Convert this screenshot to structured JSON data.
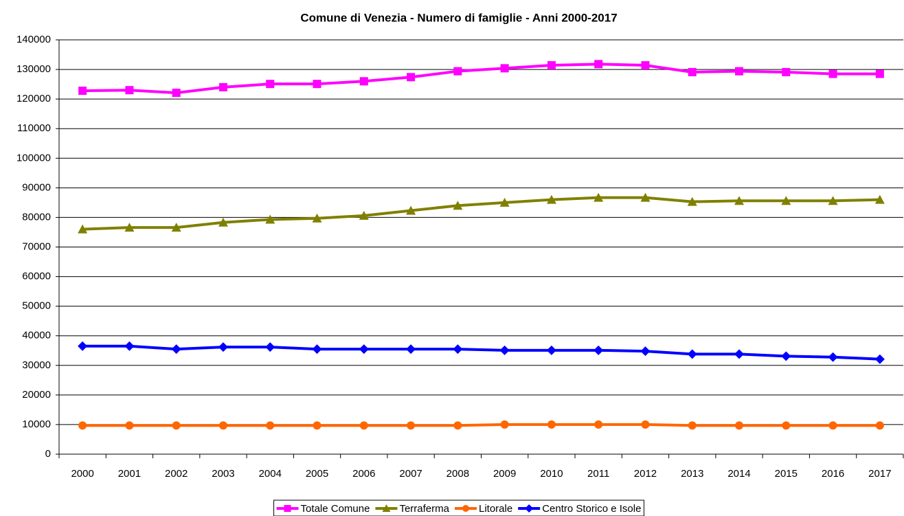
{
  "chart_data": {
    "type": "line",
    "title": "Comune di Venezia - Numero di famiglie - Anni 2000-2017",
    "categories": [
      "2000",
      "2001",
      "2002",
      "2003",
      "2004",
      "2005",
      "2006",
      "2007",
      "2008",
      "2009",
      "2010",
      "2011",
      "2012",
      "2013",
      "2014",
      "2015",
      "2016",
      "2017"
    ],
    "series": [
      {
        "name": "Totale Comune",
        "color": "#ff00ff",
        "marker": "square",
        "values": [
          122800,
          123000,
          122100,
          124000,
          125100,
          125100,
          126000,
          127400,
          129400,
          130400,
          131400,
          131800,
          131400,
          129100,
          129400,
          129100,
          128500,
          128500
        ]
      },
      {
        "name": "Terraferma",
        "color": "#808000",
        "marker": "triangle",
        "values": [
          76000,
          76600,
          76600,
          78300,
          79300,
          79700,
          80600,
          82300,
          84000,
          85000,
          86000,
          86700,
          86700,
          85300,
          85600,
          85600,
          85600,
          86000
        ]
      },
      {
        "name": "Litorale",
        "color": "#ff6600",
        "marker": "circle",
        "values": [
          9700,
          9700,
          9700,
          9700,
          9700,
          9700,
          9700,
          9700,
          9700,
          10000,
          10000,
          10000,
          10000,
          9700,
          9700,
          9700,
          9700,
          9700
        ]
      },
      {
        "name": "Centro Storico e Isole",
        "color": "#0000ff",
        "marker": "diamond",
        "values": [
          36500,
          36500,
          35500,
          36200,
          36200,
          35500,
          35500,
          35500,
          35500,
          35100,
          35100,
          35100,
          34800,
          33800,
          33800,
          33100,
          32800,
          32100
        ]
      }
    ],
    "ylim": [
      0,
      140000
    ],
    "yticks": [
      0,
      10000,
      20000,
      30000,
      40000,
      50000,
      60000,
      70000,
      80000,
      90000,
      100000,
      110000,
      120000,
      130000,
      140000
    ],
    "grid": true,
    "legend": "bottom"
  }
}
